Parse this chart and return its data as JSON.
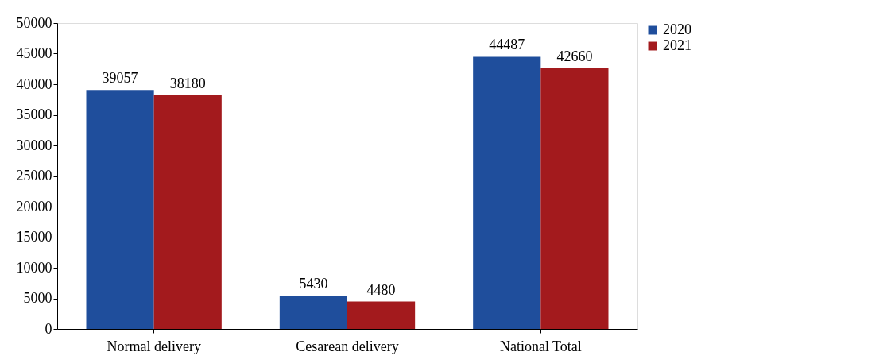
{
  "chart_data": {
    "type": "bar",
    "categories": [
      "Normal delivery",
      "Cesarean delivery",
      "National Total"
    ],
    "series": [
      {
        "name": "2020",
        "color": "#1f4e9c",
        "values": [
          39057,
          5430,
          44487
        ]
      },
      {
        "name": "2021",
        "color": "#a31a1d",
        "values": [
          38180,
          4480,
          42660
        ]
      }
    ],
    "ylim": [
      0,
      50000
    ],
    "yticks": [
      0,
      5000,
      10000,
      15000,
      20000,
      25000,
      30000,
      35000,
      40000,
      45000,
      50000
    ],
    "data_labels": true,
    "grid": false,
    "legend": "right"
  }
}
